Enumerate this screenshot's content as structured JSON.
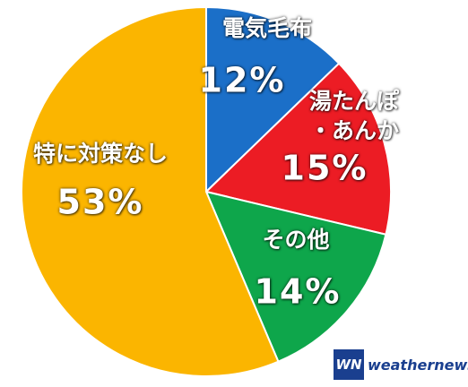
{
  "chart_data": {
    "type": "pie",
    "categories": [
      "電気毛布",
      "湯たんぽ\n・あんか",
      "その他",
      "特に対策なし"
    ],
    "values": [
      12,
      15,
      14,
      53
    ],
    "value_labels": [
      "12%",
      "15%",
      "14%",
      "53%"
    ],
    "colors": [
      "#1b6fc8",
      "#ec1c24",
      "#0ea64b",
      "#fbb500"
    ],
    "start_angle": 0,
    "direction": "clockwise"
  },
  "logo": {
    "mark": "WN",
    "text": "weathernews"
  }
}
